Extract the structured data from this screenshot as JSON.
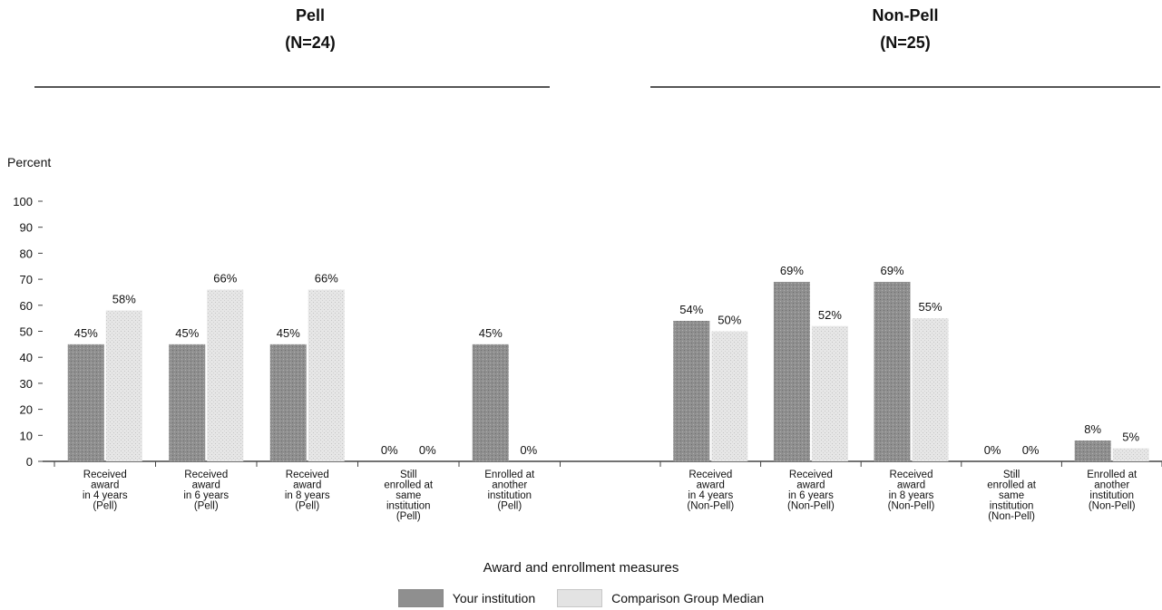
{
  "panels": [
    {
      "title": "Pell",
      "subtitle": "(N=24)"
    },
    {
      "title": "Non-Pell",
      "subtitle": "(N=25)"
    }
  ],
  "legend": {
    "your_institution": "Your institution",
    "comparison": "Comparison Group Median"
  },
  "colors": {
    "your_institution": "#8f8f8f",
    "comparison": "#e3e3e3"
  },
  "chart_data": {
    "type": "bar",
    "ylabel": "Percent",
    "xlabel": "Award and enrollment measures",
    "ylim": [
      0,
      100
    ],
    "yticks": [
      0,
      10,
      20,
      30,
      40,
      50,
      60,
      70,
      80,
      90,
      100
    ],
    "categories": [
      "Received award in 4 years (Pell)",
      "Received award in 6 years (Pell)",
      "Received award in 8 years (Pell)",
      "Still enrolled at same institution (Pell)",
      "Enrolled at another institution (Pell)",
      "Received award in 4 years (Non-Pell)",
      "Received award in 6 years (Non-Pell)",
      "Received award in 8 years (Non-Pell)",
      "Still enrolled at same institution (Non-Pell)",
      "Enrolled at another institution (Non-Pell)"
    ],
    "category_lines": [
      [
        "Received",
        "award",
        "in 4 years",
        "(Pell)"
      ],
      [
        "Received",
        "award",
        "in 6 years",
        "(Pell)"
      ],
      [
        "Received",
        "award",
        "in 8 years",
        "(Pell)"
      ],
      [
        "Still",
        "enrolled at",
        "same",
        "institution",
        "(Pell)"
      ],
      [
        "Enrolled at",
        "another",
        "institution",
        "(Pell)"
      ],
      [
        "Received",
        "award",
        "in 4 years",
        "(Non-Pell)"
      ],
      [
        "Received",
        "award",
        "in 6 years",
        "(Non-Pell)"
      ],
      [
        "Received",
        "award",
        "in 8 years",
        "(Non-Pell)"
      ],
      [
        "Still",
        "enrolled at",
        "same",
        "institution",
        "(Non-Pell)"
      ],
      [
        "Enrolled at",
        "another",
        "institution",
        "(Non-Pell)"
      ]
    ],
    "series": [
      {
        "name": "Your institution",
        "values": [
          45,
          45,
          45,
          0,
          45,
          54,
          69,
          69,
          0,
          8
        ],
        "labels": [
          "45%",
          "45%",
          "45%",
          "0%",
          "45%",
          "54%",
          "69%",
          "69%",
          "0%",
          "8%"
        ]
      },
      {
        "name": "Comparison Group Median",
        "values": [
          58,
          66,
          66,
          0,
          0,
          50,
          52,
          55,
          0,
          5
        ],
        "labels": [
          "58%",
          "66%",
          "66%",
          "0%",
          "0%",
          "50%",
          "52%",
          "55%",
          "0%",
          "5%"
        ]
      }
    ],
    "legend_position": "bottom",
    "grid": false
  }
}
